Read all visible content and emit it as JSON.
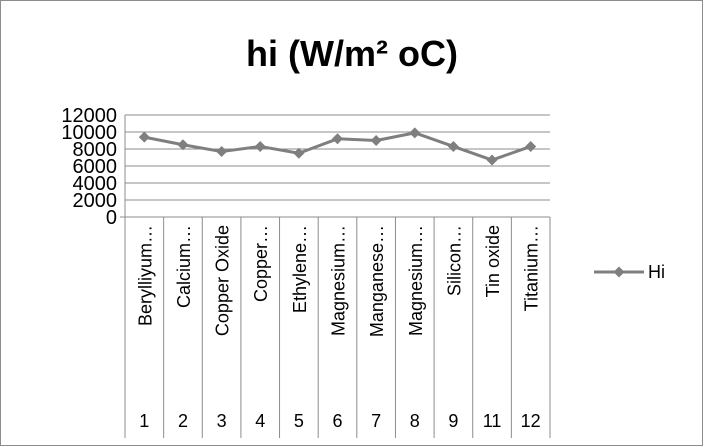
{
  "chart_data": {
    "type": "line",
    "title": "hi (W/m² oC)",
    "xlabel": "",
    "ylabel": "",
    "ylim": [
      0,
      12000
    ],
    "yticks": [
      "0",
      "2000",
      "4000",
      "6000",
      "8000",
      "10000",
      "12000"
    ],
    "grid": true,
    "legend_position": "right",
    "categories": [
      {
        "name": "Berylliyum…",
        "number": "1"
      },
      {
        "name": "Calcium…",
        "number": "2"
      },
      {
        "name": "Copper Oxide",
        "number": "3"
      },
      {
        "name": "Copper…",
        "number": "4"
      },
      {
        "name": "Ethylene…",
        "number": "5"
      },
      {
        "name": "Magnesium…",
        "number": "6"
      },
      {
        "name": "Manganese…",
        "number": "7"
      },
      {
        "name": "Magnesium…",
        "number": "8"
      },
      {
        "name": "Silicon…",
        "number": "9"
      },
      {
        "name": "Tin oxide",
        "number": "11"
      },
      {
        "name": "Titanium…",
        "number": "12"
      }
    ],
    "series": [
      {
        "name": "Hi",
        "color": "#7f7f7f",
        "marker": "diamond",
        "values": [
          9400,
          8500,
          7700,
          8300,
          7500,
          9200,
          9000,
          9900,
          8300,
          6700,
          8300
        ]
      }
    ]
  }
}
